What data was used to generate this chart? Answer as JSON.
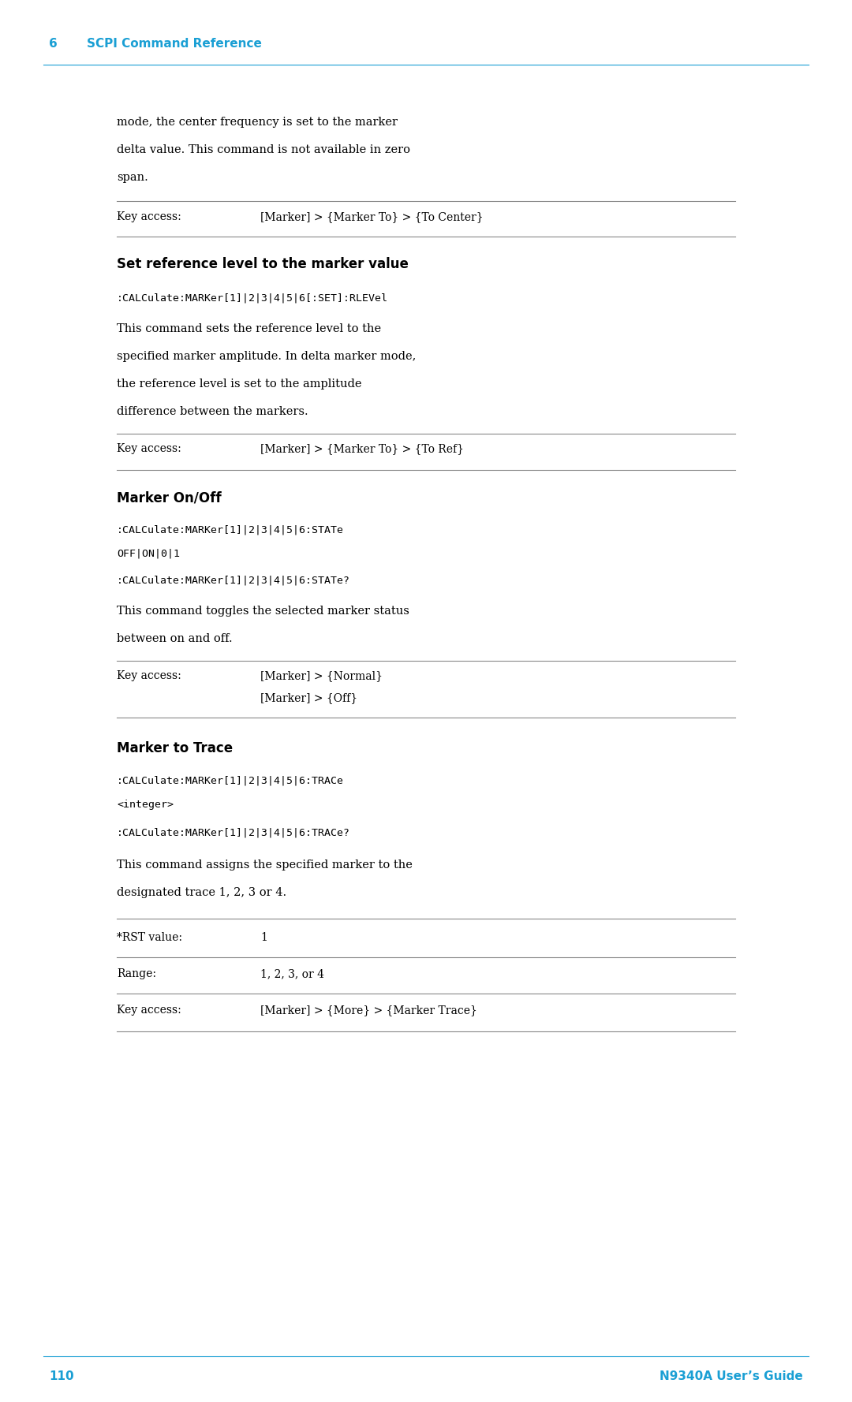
{
  "bg_color": "#ffffff",
  "page_width": 10.8,
  "page_height": 17.78,
  "cyan_color": "#1a9fd4",
  "black_color": "#000000",
  "header_chapter": "6",
  "header_title": "SCPI Command Reference",
  "footer_page": "110",
  "footer_guide": "N9340A User’s Guide",
  "intro_text_line1": "mode, the center frequency is set to the marker",
  "intro_text_line2": "delta value. This command is not available in zero",
  "intro_text_line3": "span.",
  "key_access_label": "Key access:",
  "intro_key_access": "[Marker] > {Marker To} > {To Center}",
  "section1_title": "Set reference level to the marker value",
  "section1_command": ":CALCulate:MARKer[1]|2|3|4|5|6[:SET]:RLEVel",
  "section1_desc_line1": "This command sets the reference level to the",
  "section1_desc_line2": "specified marker amplitude. In delta marker mode,",
  "section1_desc_line3": "the reference level is set to the amplitude",
  "section1_desc_line4": "difference between the markers.",
  "section1_key_access": "[Marker] > {Marker To} > {To Ref}",
  "section2_title": "Marker On/Off",
  "section2_command1": ":CALCulate:MARKer[1]|2|3|4|5|6:STATe",
  "section2_command2": "OFF|ON|0|1",
  "section2_command3": ":CALCulate:MARKer[1]|2|3|4|5|6:STATe?",
  "section2_desc_line1": "This command toggles the selected marker status",
  "section2_desc_line2": "between on and off.",
  "section2_key_access_line1": "[Marker] > {Normal}",
  "section2_key_access_line2": "[Marker] > {Off}",
  "section3_title": "Marker to Trace",
  "section3_command1": ":CALCulate:MARKer[1]|2|3|4|5|6:TRACe",
  "section3_command2": "<integer>",
  "section3_command3": ":CALCulate:MARKer[1]|2|3|4|5|6:TRACe?",
  "section3_desc_line1": "This command assigns the specified marker to the",
  "section3_desc_line2": "designated trace 1, 2, 3 or 4.",
  "section3_rst_label": "*RST value:",
  "section3_rst_value": "1",
  "section3_range_label": "Range:",
  "section3_range_value": "1, 2, 3, or 4",
  "section3_key_label": "Key access:",
  "section3_key_value": "[Marker] > {More} > {Marker Trace}"
}
